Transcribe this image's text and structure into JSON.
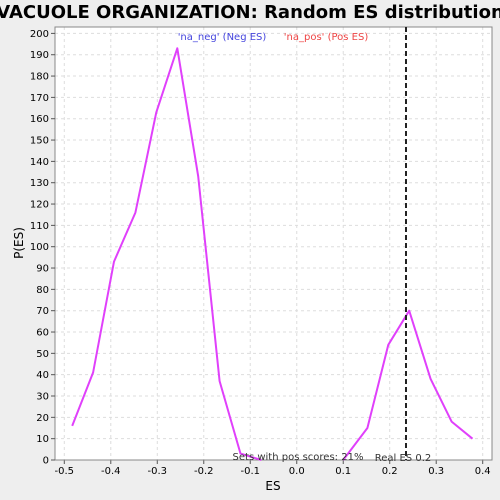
{
  "chart_data": {
    "type": "line",
    "title": "VACUOLE ORGANIZATION: Random ES distribution",
    "xlabel": "ES",
    "ylabel": "P(ES)",
    "xlim": [
      -0.52,
      0.42
    ],
    "ylim": [
      0,
      203
    ],
    "x_ticks": [
      "-0.5",
      "-0.4",
      "-0.3",
      "-0.2",
      "-0.1",
      "0.0",
      "0.1",
      "0.2",
      "0.3",
      "0.4"
    ],
    "x_tick_values": [
      -0.5,
      -0.4,
      -0.3,
      -0.2,
      -0.1,
      0.0,
      0.1,
      0.2,
      0.3,
      0.4
    ],
    "y_ticks": [
      "0",
      "10",
      "20",
      "30",
      "40",
      "50",
      "60",
      "70",
      "80",
      "90",
      "100",
      "110",
      "120",
      "130",
      "140",
      "150",
      "160",
      "170",
      "180",
      "190",
      "200"
    ],
    "y_tick_values": [
      0,
      10,
      20,
      30,
      40,
      50,
      60,
      70,
      80,
      90,
      100,
      110,
      120,
      130,
      140,
      150,
      160,
      170,
      180,
      190,
      200
    ],
    "grid": true,
    "legend_position": "top",
    "series": [
      {
        "name": "'na_neg' (Neg ES)",
        "color": "#4444dd",
        "x": [
          -0.483,
          -0.438,
          -0.393,
          -0.347,
          -0.302,
          -0.257,
          -0.212,
          -0.166,
          -0.121,
          -0.076
        ],
        "y": [
          16,
          41,
          93,
          116,
          163,
          193,
          133,
          37,
          3,
          0
        ]
      },
      {
        "name": "'na_pos' (Pos ES)",
        "color": "#ee4444",
        "x": [
          0.1,
          0.152,
          0.197,
          0.242,
          0.288,
          0.333,
          0.378
        ],
        "y": [
          0,
          15,
          54,
          70,
          38,
          18,
          10
        ]
      }
    ],
    "line_color": "#e040fb",
    "real_es": {
      "x": 0.235,
      "label": "Real ES 0.2"
    },
    "annotation": "Sets with pos scores: 21%"
  }
}
